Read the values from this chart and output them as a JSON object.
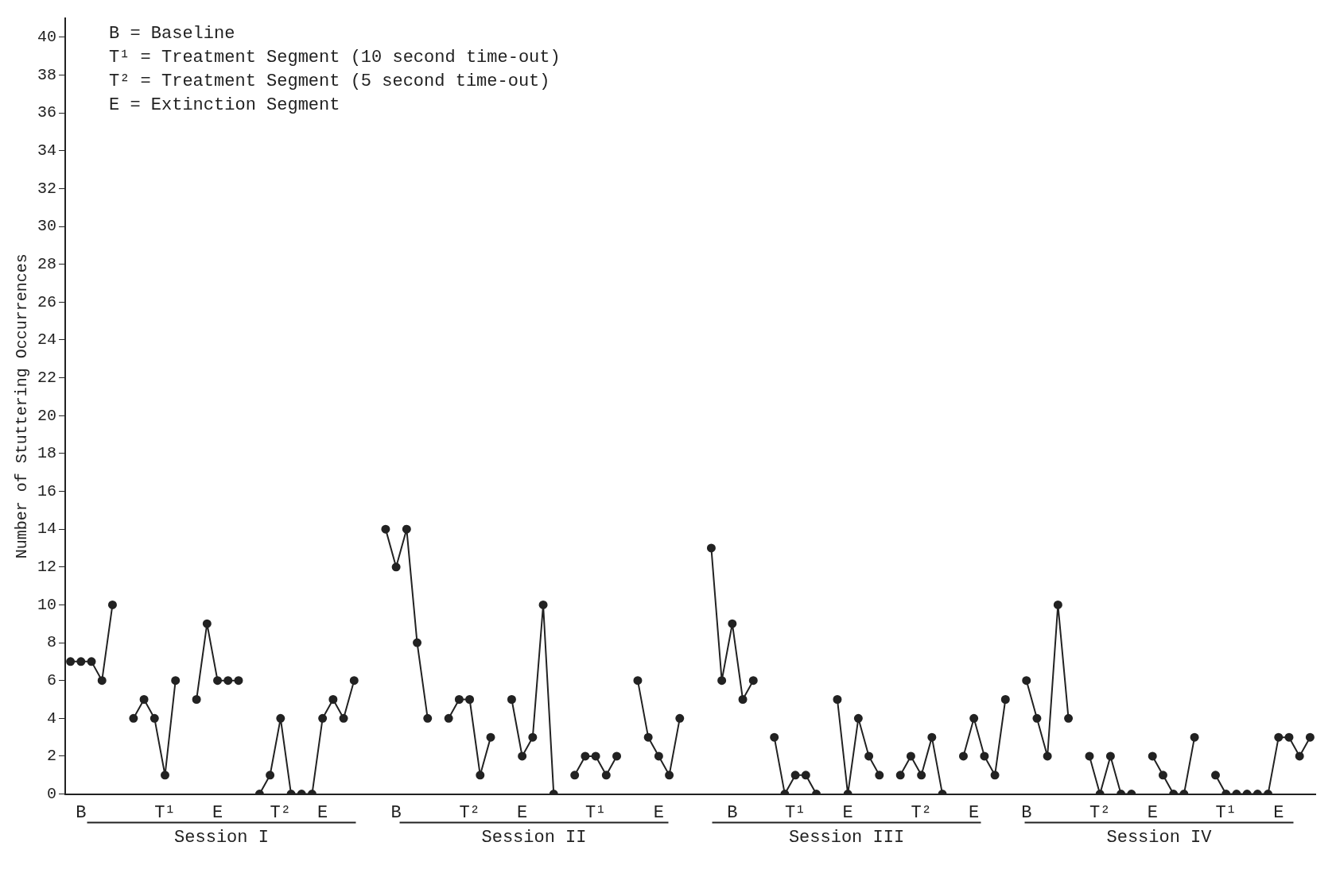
{
  "chart_data": {
    "type": "line",
    "ylabel": "Number of Stuttering Occurrences",
    "annotations": [
      "B = Baseline",
      "T¹ = Treatment Segment (10 second time-out)",
      "T² = Treatment Segment (5 second time-out)",
      "E = Extinction Segment",
      "Session I",
      "Session II",
      "Session III",
      "Session IV"
    ],
    "categories": [
      null,
      "B",
      null,
      null,
      null,
      null,
      null,
      null,
      null,
      "T¹",
      null,
      null,
      null,
      null,
      "E",
      null,
      null,
      null,
      null,
      null,
      "T²",
      null,
      null,
      null,
      "E",
      null,
      null,
      null,
      null,
      null,
      null,
      "B",
      null,
      null,
      null,
      null,
      null,
      null,
      "T²",
      null,
      null,
      null,
      null,
      "E",
      null,
      null,
      null,
      null,
      null,
      null,
      "T¹",
      null,
      null,
      null,
      null,
      null,
      "E",
      null,
      null,
      null,
      null,
      null,
      null,
      "B",
      null,
      null,
      null,
      null,
      null,
      "T¹",
      null,
      null,
      null,
      null,
      "E",
      null,
      null,
      null,
      null,
      null,
      null,
      "T²",
      null,
      null,
      null,
      null,
      "E",
      null,
      null,
      null,
      null,
      "B",
      null,
      null,
      null,
      null,
      null,
      null,
      "T²",
      null,
      null,
      null,
      null,
      "E",
      null,
      null,
      null,
      null,
      null,
      null,
      "T¹",
      null,
      null,
      null,
      null,
      "E",
      null,
      null,
      null
    ],
    "series": [
      {
        "color": "#222222",
        "values": [
          7,
          7,
          7,
          6,
          10,
          null,
          4,
          5,
          4,
          1,
          6,
          null,
          5,
          9,
          6,
          6,
          6,
          null,
          0,
          1,
          4,
          0,
          0,
          0,
          4,
          5,
          4,
          6,
          null,
          null,
          14,
          12,
          14,
          8,
          4,
          null,
          4,
          5,
          5,
          1,
          3,
          null,
          5,
          2,
          3,
          10,
          0,
          null,
          1,
          2,
          2,
          1,
          2,
          null,
          6,
          3,
          2,
          1,
          4,
          null,
          null,
          13,
          6,
          9,
          5,
          6,
          null,
          3,
          0,
          1,
          1,
          0,
          null,
          5,
          0,
          4,
          2,
          1,
          null,
          1,
          2,
          1,
          3,
          0,
          null,
          2,
          4,
          2,
          1,
          5,
          null,
          6,
          4,
          2,
          10,
          4,
          null,
          2,
          0,
          2,
          0,
          0,
          null,
          2,
          1,
          0,
          0,
          3,
          null,
          1,
          0,
          0,
          0,
          0,
          0,
          3,
          3,
          2,
          3
        ]
      }
    ],
    "ylim": [
      0,
      41
    ],
    "yticks": [
      0,
      2,
      4,
      6,
      8,
      10,
      12,
      14,
      16,
      18,
      20,
      22,
      24,
      26,
      28,
      30,
      32,
      34,
      36,
      38,
      40
    ],
    "marker": "circle",
    "line_style": "solid"
  }
}
